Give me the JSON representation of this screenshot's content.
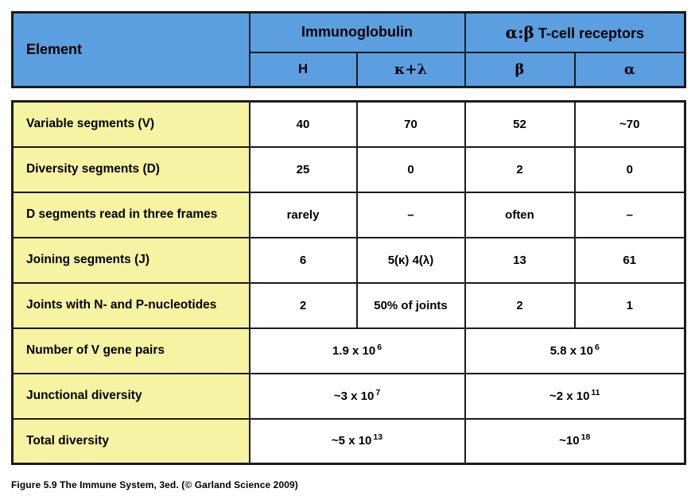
{
  "caption": "Figure 5.9 The Immune System, 3ed. (© Garland Science 2009)",
  "colors": {
    "header_blue": "#5c9fe0",
    "row_yellow": "#f6f3a2",
    "border_dark": "#1b1b1b",
    "cell_white": "#ffffff"
  },
  "table": {
    "corner_label": "Element",
    "groups": [
      {
        "label": "Immunoglobulin",
        "greek": "",
        "cols": [
          "H",
          "κ+λ"
        ]
      },
      {
        "label": "T-cell receptors",
        "greek": "α:β",
        "cols": [
          "β",
          "α"
        ]
      }
    ],
    "rows": [
      {
        "label": "Variable segments (V)",
        "cells": [
          "40",
          "70",
          "52",
          "~70"
        ]
      },
      {
        "label": "Diversity segments (D)",
        "cells": [
          "25",
          "0",
          "2",
          "0"
        ]
      },
      {
        "label": "D segments read in three frames",
        "cells": [
          "rarely",
          "–",
          "often",
          "–"
        ]
      },
      {
        "label": "Joining segments (J)",
        "cells": [
          "6",
          "5(κ) 4(λ)",
          "13",
          "61"
        ]
      },
      {
        "label": "Joints with N- and P-nucleotides",
        "cells": [
          "2",
          "50% of joints",
          "2",
          "1"
        ]
      },
      {
        "label": "Number of V gene pairs",
        "merged": [
          {
            "base": "1.9 x 10",
            "sup": "6"
          },
          {
            "base": "5.8 x 10",
            "sup": "6"
          }
        ]
      },
      {
        "label": "Junctional diversity",
        "merged": [
          {
            "base": "~3 x 10",
            "sup": "7"
          },
          {
            "base": "~2 x 10",
            "sup": "11"
          }
        ]
      },
      {
        "label": "Total diversity",
        "merged": [
          {
            "base": "~5 x 10",
            "sup": "13"
          },
          {
            "base": "~10",
            "sup": "18"
          }
        ]
      }
    ]
  },
  "chart_data": {
    "type": "table",
    "title": "Figure 5.9 The Immune System, 3ed. (© Garland Science 2009)",
    "column_groups": [
      "Immunoglobulin",
      "α:β T-cell receptors"
    ],
    "columns": [
      "Element",
      "Immunoglobulin H",
      "Immunoglobulin κ+λ",
      "T-cell receptor β",
      "T-cell receptor α"
    ],
    "rows": [
      [
        "Variable segments (V)",
        "40",
        "70",
        "52",
        "~70"
      ],
      [
        "Diversity segments (D)",
        "25",
        "0",
        "2",
        "0"
      ],
      [
        "D segments read in three frames",
        "rarely",
        "–",
        "often",
        "–"
      ],
      [
        "Joining segments (J)",
        "6",
        "5(κ) 4(λ)",
        "13",
        "61"
      ],
      [
        "Joints with N- and P-nucleotides",
        "2",
        "50% of joints",
        "2",
        "1"
      ],
      [
        "Number of V gene pairs",
        "1.9 x 10^6",
        "1.9 x 10^6",
        "5.8 x 10^6",
        "5.8 x 10^6"
      ],
      [
        "Junctional diversity",
        "~3 x 10^7",
        "~3 x 10^7",
        "~2 x 10^11",
        "~2 x 10^11"
      ],
      [
        "Total diversity",
        "~5 x 10^13",
        "~5 x 10^13",
        "~10^18",
        "~10^18"
      ]
    ]
  }
}
